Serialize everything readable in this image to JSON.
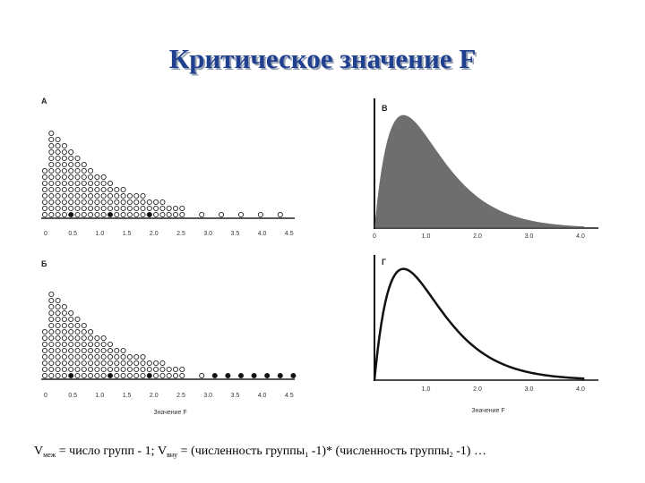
{
  "title": "Критическое значение F",
  "panels": [
    {
      "label": "А",
      "ticks": [
        "0",
        "0.5",
        "1.0",
        "1.5",
        "2.0",
        "2.5",
        "3.0",
        "3.5",
        "4.0",
        "4.5"
      ]
    },
    {
      "label": "Б",
      "ticks": [
        "0",
        "0.5",
        "1.0",
        "1.5",
        "2.0",
        "2.5",
        "3.0",
        "3.5",
        "4.0",
        "4.5"
      ],
      "axis_title": "Значение F"
    },
    {
      "label": "В",
      "ticks": [
        "0",
        "1.0",
        "2.0",
        "3.0",
        "4.0"
      ]
    },
    {
      "label": "Г",
      "ticks": [
        "1.0",
        "2.0",
        "3.0",
        "4.0"
      ],
      "axis_title": "Значение F"
    }
  ],
  "footer": [
    {
      "text": "V"
    },
    {
      "sub": "меж"
    },
    {
      "text": " = число групп - 1; V"
    },
    {
      "sub": "вну"
    },
    {
      "text": " = (численность группы"
    },
    {
      "sub": "1"
    },
    {
      "text": " -1)* (численность группы"
    },
    {
      "sub": "2"
    },
    {
      "text": " -1) …"
    }
  ]
}
